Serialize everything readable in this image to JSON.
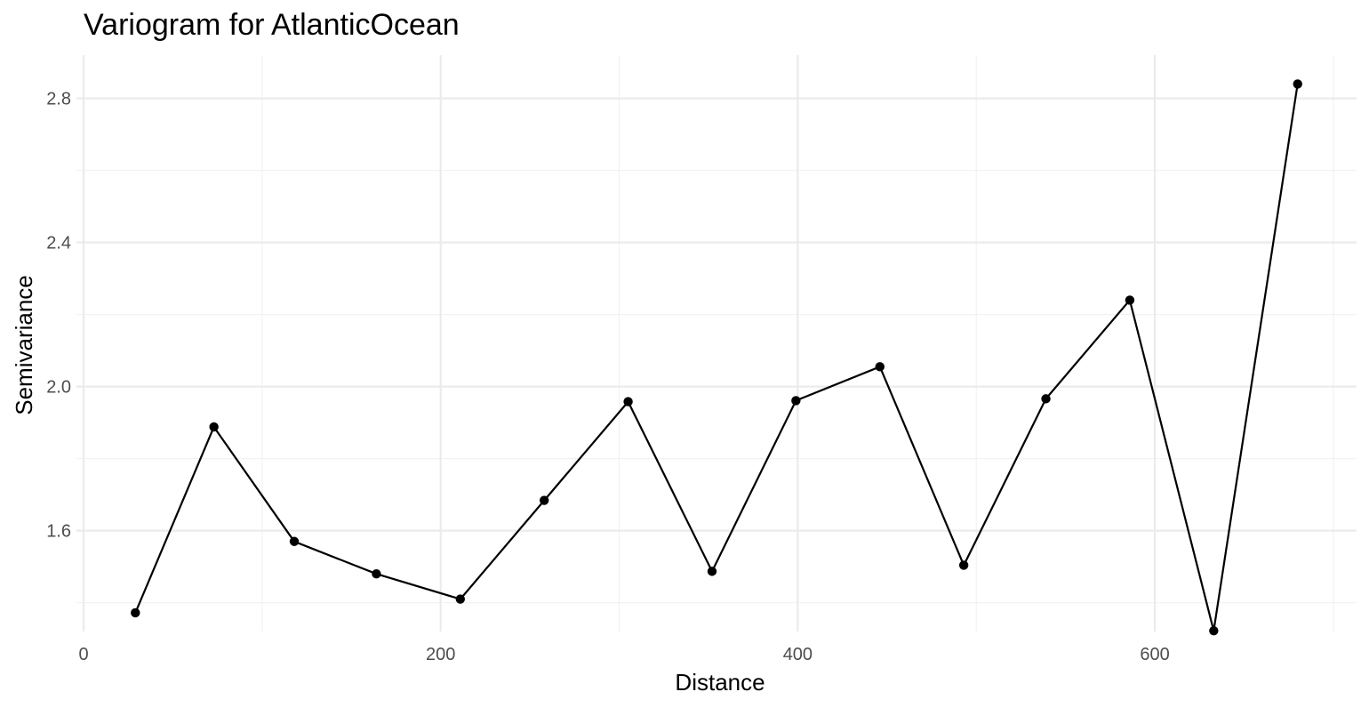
{
  "chart_data": {
    "type": "line",
    "title": "Variogram for AtlanticOcean",
    "xlabel": "Distance",
    "ylabel": "Semivariance",
    "xlim": [
      -4,
      713
    ],
    "ylim": [
      1.32,
      2.92
    ],
    "x_ticks": [
      0,
      200,
      400,
      600
    ],
    "x_tick_labels": [
      "0",
      "200",
      "400",
      "600"
    ],
    "x_minor_ticks": [
      100,
      300,
      500,
      700
    ],
    "y_ticks": [
      1.6,
      2.0,
      2.4,
      2.8
    ],
    "y_tick_labels": [
      "1.6",
      "2.0",
      "2.4",
      "2.8"
    ],
    "y_minor_ticks": [
      1.4,
      1.8,
      2.2,
      2.6
    ],
    "grid": true,
    "legend": "none",
    "series": [
      {
        "x": [
          29,
          73,
          118,
          164,
          211,
          258,
          305,
          352,
          399,
          446,
          493,
          539,
          586,
          633,
          680
        ],
        "y": [
          1.372,
          1.888,
          1.57,
          1.48,
          1.41,
          1.684,
          1.958,
          1.487,
          1.961,
          2.055,
          1.504,
          1.966,
          2.24,
          1.322,
          2.84
        ]
      }
    ]
  }
}
